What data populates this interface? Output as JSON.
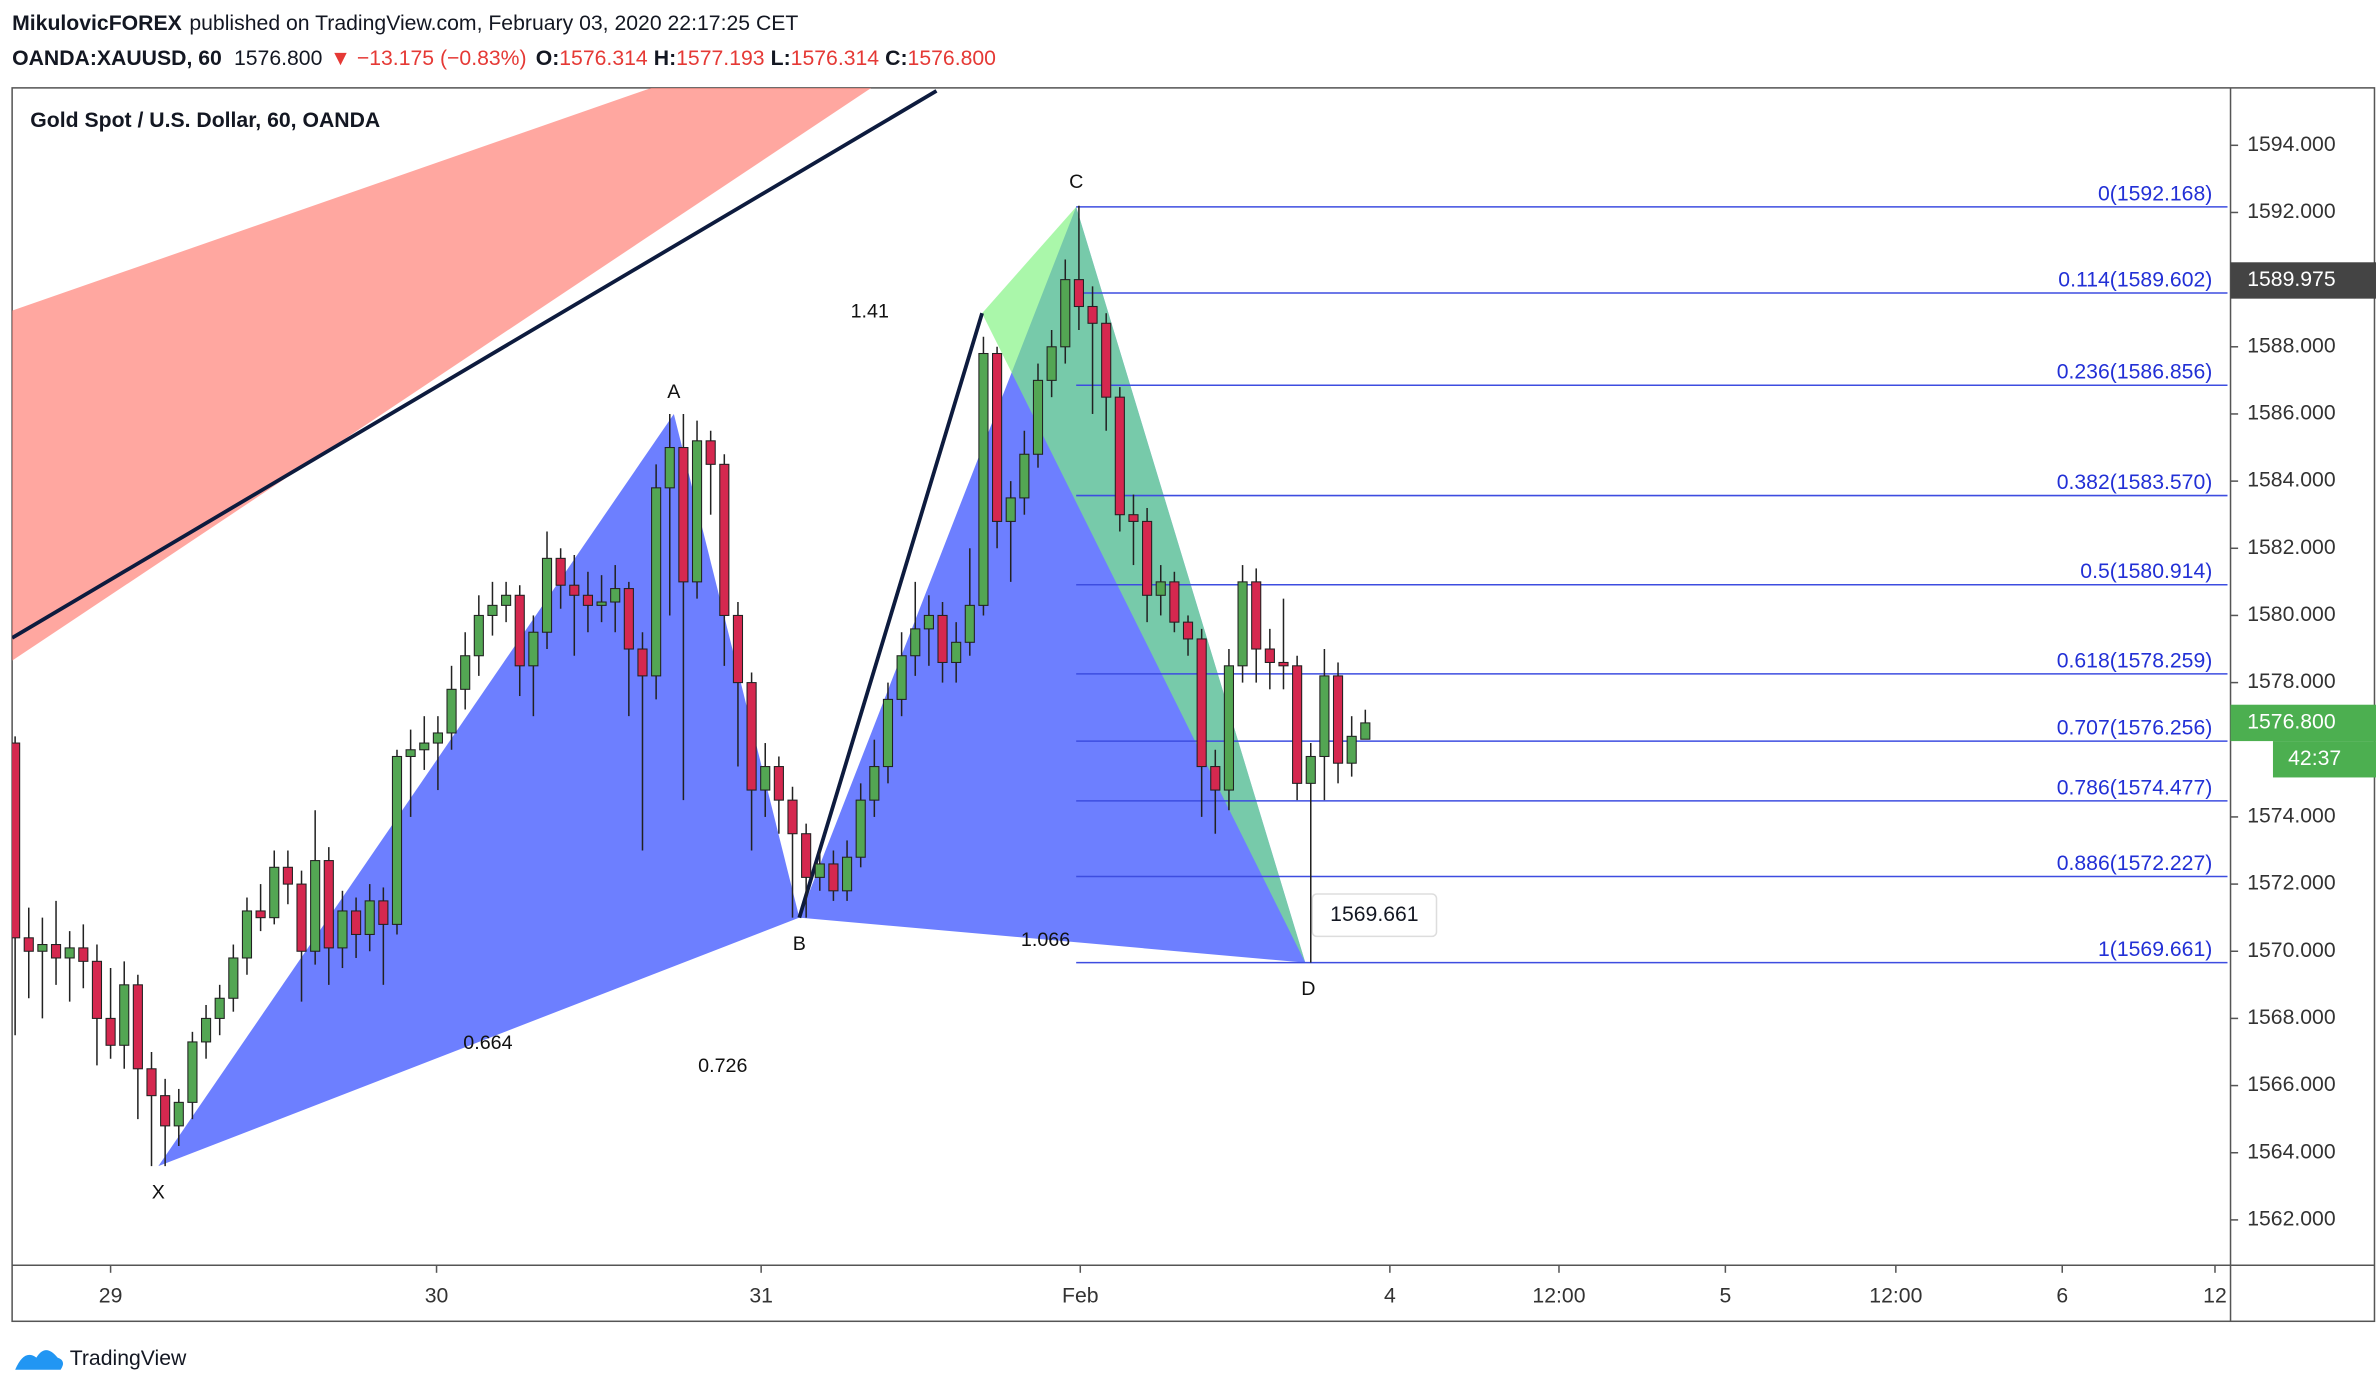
{
  "header": {
    "author": "MikulovicFOREX",
    "published": "published on TradingView.com, February 03, 2020 22:17:25 CET",
    "symbol": "OANDA:XAUUSD, 60",
    "last": "1576.800",
    "change": "▼ −13.175 (−0.83%)",
    "o_label": "O:",
    "open": "1576.314",
    "h_label": "H:",
    "high": "1577.193",
    "l_label": "L:",
    "low": "1576.314",
    "c_label": "C:",
    "close": "1576.800"
  },
  "footer": {
    "brand": "TradingView"
  },
  "chart_data": {
    "type": "candlestick",
    "title": "Gold Spot / U.S. Dollar, 60, OANDA",
    "up_color": "#53a653",
    "down_color": "#d5284f",
    "xlim": [
      -0.22,
      162.44
    ],
    "ylim": [
      1560.65,
      1595.71
    ],
    "xticks": [
      {
        "value": 7.0,
        "label": "29"
      },
      {
        "value": 30.9,
        "label": "30"
      },
      {
        "value": 54.7,
        "label": "31"
      },
      {
        "value": 78.1,
        "label": "Feb"
      },
      {
        "value": 100.8,
        "label": "4"
      },
      {
        "value": 113.2,
        "label": "12:00"
      },
      {
        "value": 125.4,
        "label": "5"
      },
      {
        "value": 137.9,
        "label": "12:00"
      },
      {
        "value": 150.1,
        "label": "6"
      },
      {
        "value": 161.3,
        "label": "12"
      }
    ],
    "yticks": [
      {
        "value": 1562,
        "label": "1562.000"
      },
      {
        "value": 1564,
        "label": "1564.000"
      },
      {
        "value": 1566,
        "label": "1566.000"
      },
      {
        "value": 1568,
        "label": "1568.000"
      },
      {
        "value": 1570,
        "label": "1570.000"
      },
      {
        "value": 1572,
        "label": "1572.000"
      },
      {
        "value": 1574,
        "label": "1574.000"
      },
      {
        "value": 1578,
        "label": "1578.000"
      },
      {
        "value": 1580,
        "label": "1580.000"
      },
      {
        "value": 1582,
        "label": "1582.000"
      },
      {
        "value": 1584,
        "label": "1584.000"
      },
      {
        "value": 1586,
        "label": "1586.000"
      },
      {
        "value": 1588,
        "label": "1588.000"
      },
      {
        "value": 1592,
        "label": "1592.000"
      },
      {
        "value": 1594,
        "label": "1594.000"
      }
    ],
    "ohlc": [
      [
        1576.2,
        1576.4,
        1567.5,
        1570.4
      ],
      [
        1570.4,
        1571.3,
        1568.6,
        1570.0
      ],
      [
        1570.0,
        1571.0,
        1568.0,
        1570.2
      ],
      [
        1570.2,
        1571.5,
        1569.0,
        1569.8
      ],
      [
        1569.8,
        1570.6,
        1568.5,
        1570.1
      ],
      [
        1570.1,
        1570.8,
        1568.9,
        1569.7
      ],
      [
        1569.7,
        1570.2,
        1566.6,
        1568.0
      ],
      [
        1568.0,
        1569.5,
        1566.8,
        1567.2
      ],
      [
        1567.2,
        1569.7,
        1566.5,
        1569.0
      ],
      [
        1569.0,
        1569.3,
        1565.0,
        1566.5
      ],
      [
        1566.5,
        1567.0,
        1563.6,
        1565.7
      ],
      [
        1565.7,
        1566.2,
        1563.6,
        1564.8
      ],
      [
        1564.8,
        1565.9,
        1564.2,
        1565.5
      ],
      [
        1565.5,
        1567.6,
        1565.0,
        1567.3
      ],
      [
        1567.3,
        1568.4,
        1566.8,
        1568.0
      ],
      [
        1568.0,
        1569.0,
        1567.5,
        1568.6
      ],
      [
        1568.6,
        1570.2,
        1568.2,
        1569.8
      ],
      [
        1569.8,
        1571.6,
        1569.3,
        1571.2
      ],
      [
        1571.2,
        1572.0,
        1570.6,
        1571.0
      ],
      [
        1571.0,
        1573.0,
        1570.8,
        1572.5
      ],
      [
        1572.5,
        1573.0,
        1571.4,
        1572.0
      ],
      [
        1572.0,
        1572.4,
        1568.5,
        1570.0
      ],
      [
        1570.0,
        1574.2,
        1569.6,
        1572.7
      ],
      [
        1572.7,
        1573.1,
        1569.0,
        1570.1
      ],
      [
        1570.1,
        1571.8,
        1569.5,
        1571.2
      ],
      [
        1571.2,
        1571.6,
        1569.8,
        1570.5
      ],
      [
        1570.5,
        1572.0,
        1570.0,
        1571.5
      ],
      [
        1571.5,
        1571.9,
        1569.0,
        1570.8
      ],
      [
        1570.8,
        1576.0,
        1570.5,
        1575.8
      ],
      [
        1575.8,
        1576.6,
        1574.0,
        1576.0
      ],
      [
        1576.0,
        1577.0,
        1575.4,
        1576.2
      ],
      [
        1576.2,
        1577.0,
        1574.8,
        1576.5
      ],
      [
        1576.5,
        1578.5,
        1576.0,
        1577.8
      ],
      [
        1577.8,
        1579.5,
        1577.2,
        1578.8
      ],
      [
        1578.8,
        1580.6,
        1578.2,
        1580.0
      ],
      [
        1580.0,
        1581.0,
        1579.4,
        1580.3
      ],
      [
        1580.3,
        1581.0,
        1579.8,
        1580.6
      ],
      [
        1580.6,
        1580.9,
        1577.6,
        1578.5
      ],
      [
        1578.5,
        1580.0,
        1577.0,
        1579.5
      ],
      [
        1579.5,
        1582.5,
        1579.0,
        1581.7
      ],
      [
        1581.7,
        1582.0,
        1580.2,
        1580.9
      ],
      [
        1580.9,
        1581.8,
        1578.8,
        1580.6
      ],
      [
        1580.6,
        1581.3,
        1579.5,
        1580.3
      ],
      [
        1580.3,
        1581.2,
        1579.8,
        1580.4
      ],
      [
        1580.4,
        1581.5,
        1579.5,
        1580.8
      ],
      [
        1580.8,
        1581.0,
        1577.0,
        1579.0
      ],
      [
        1579.0,
        1579.5,
        1573.0,
        1578.2
      ],
      [
        1578.2,
        1584.5,
        1577.5,
        1583.8
      ],
      [
        1583.8,
        1586.0,
        1580.0,
        1585.0
      ],
      [
        1585.0,
        1586.0,
        1574.5,
        1581.0
      ],
      [
        1581.0,
        1585.8,
        1580.5,
        1585.2
      ],
      [
        1585.2,
        1585.5,
        1583.0,
        1584.5
      ],
      [
        1584.5,
        1584.8,
        1578.5,
        1580.0
      ],
      [
        1580.0,
        1580.4,
        1575.5,
        1578.0
      ],
      [
        1578.0,
        1578.3,
        1573.0,
        1574.8
      ],
      [
        1574.8,
        1576.2,
        1574.0,
        1575.5
      ],
      [
        1575.5,
        1575.8,
        1573.5,
        1574.5
      ],
      [
        1574.5,
        1574.9,
        1571.0,
        1573.5
      ],
      [
        1573.5,
        1573.8,
        1571.0,
        1572.2
      ],
      [
        1572.2,
        1573.0,
        1571.8,
        1572.6
      ],
      [
        1572.6,
        1573.0,
        1571.5,
        1571.8
      ],
      [
        1571.8,
        1573.3,
        1571.5,
        1572.8
      ],
      [
        1572.8,
        1575.0,
        1572.5,
        1574.5
      ],
      [
        1574.5,
        1576.3,
        1574.0,
        1575.5
      ],
      [
        1575.5,
        1578.0,
        1575.0,
        1577.5
      ],
      [
        1577.5,
        1579.5,
        1577.0,
        1578.8
      ],
      [
        1578.8,
        1581.0,
        1578.2,
        1579.6
      ],
      [
        1579.6,
        1580.6,
        1578.5,
        1580.0
      ],
      [
        1580.0,
        1580.4,
        1578.0,
        1578.6
      ],
      [
        1578.6,
        1579.8,
        1578.0,
        1579.2
      ],
      [
        1579.2,
        1582.0,
        1578.8,
        1580.3
      ],
      [
        1580.3,
        1588.3,
        1580.0,
        1587.8
      ],
      [
        1587.8,
        1588.0,
        1582.0,
        1582.8
      ],
      [
        1582.8,
        1584.0,
        1581.0,
        1583.5
      ],
      [
        1583.5,
        1585.5,
        1583.0,
        1584.8
      ],
      [
        1584.8,
        1587.5,
        1584.4,
        1587.0
      ],
      [
        1587.0,
        1588.5,
        1586.5,
        1588.0
      ],
      [
        1588.0,
        1590.6,
        1587.5,
        1590.0
      ],
      [
        1590.0,
        1592.2,
        1588.5,
        1589.2
      ],
      [
        1589.2,
        1589.8,
        1586.0,
        1588.7
      ],
      [
        1588.7,
        1589.0,
        1585.5,
        1586.5
      ],
      [
        1586.5,
        1586.8,
        1582.5,
        1583.0
      ],
      [
        1583.0,
        1583.6,
        1581.5,
        1582.8
      ],
      [
        1582.8,
        1583.2,
        1579.8,
        1580.6
      ],
      [
        1580.6,
        1581.5,
        1580.0,
        1581.0
      ],
      [
        1581.0,
        1581.3,
        1579.5,
        1579.8
      ],
      [
        1579.8,
        1580.0,
        1578.8,
        1579.3
      ],
      [
        1579.3,
        1579.6,
        1574.0,
        1575.5
      ],
      [
        1575.5,
        1576.0,
        1573.5,
        1574.8
      ],
      [
        1574.8,
        1579.0,
        1574.2,
        1578.5
      ],
      [
        1578.5,
        1581.5,
        1578.0,
        1581.0
      ],
      [
        1581.0,
        1581.4,
        1578.0,
        1579.0
      ],
      [
        1579.0,
        1579.6,
        1577.8,
        1578.6
      ],
      [
        1578.6,
        1580.5,
        1577.8,
        1578.5
      ],
      [
        1578.5,
        1578.8,
        1574.5,
        1575.0
      ],
      [
        1575.0,
        1576.2,
        1569.661,
        1575.8
      ],
      [
        1575.8,
        1579.0,
        1574.5,
        1578.2
      ],
      [
        1578.2,
        1578.6,
        1575.0,
        1575.6
      ],
      [
        1575.6,
        1577.0,
        1575.2,
        1576.4
      ],
      [
        1576.314,
        1577.193,
        1576.314,
        1576.8
      ]
    ],
    "pattern": [
      {
        "label": "X",
        "x": 10.5,
        "price": 1563.6
      },
      {
        "label": "A",
        "x": 48.3,
        "price": 1586.0
      },
      {
        "label": "B",
        "x": 57.5,
        "price": 1571.0
      },
      {
        "label": "C",
        "x": 77.8,
        "price": 1592.168
      },
      {
        "label": "D",
        "x": 94.6,
        "price": 1569.661
      }
    ],
    "extension_point": {
      "x": 70.9,
      "price": 1589.0
    },
    "ratios": [
      0.664,
      0.726,
      1.41,
      1.066
    ],
    "fib_levels": [
      {
        "value": 1592.168,
        "label": "0(1592.168)"
      },
      {
        "value": 1589.602,
        "label": "0.114(1589.602)"
      },
      {
        "value": 1586.856,
        "label": "0.236(1586.856)"
      },
      {
        "value": 1583.57,
        "label": "0.382(1583.570)"
      },
      {
        "value": 1580.914,
        "label": "0.5(1580.914)"
      },
      {
        "value": 1578.259,
        "label": "0.618(1578.259)"
      },
      {
        "value": 1576.256,
        "label": "0.707(1576.256)"
      },
      {
        "value": 1574.477,
        "label": "0.786(1574.477)"
      },
      {
        "value": 1572.227,
        "label": "0.886(1572.227)"
      },
      {
        "value": 1569.661,
        "label": "1(1569.661)"
      }
    ],
    "price_tags": [
      {
        "value": 1589.975,
        "label": "1589.975",
        "color": "#444444"
      },
      {
        "value": 1576.8,
        "label": "1576.800",
        "color": "#4caf50",
        "countdown": "42:37"
      }
    ],
    "low_callout": "1569.661"
  }
}
